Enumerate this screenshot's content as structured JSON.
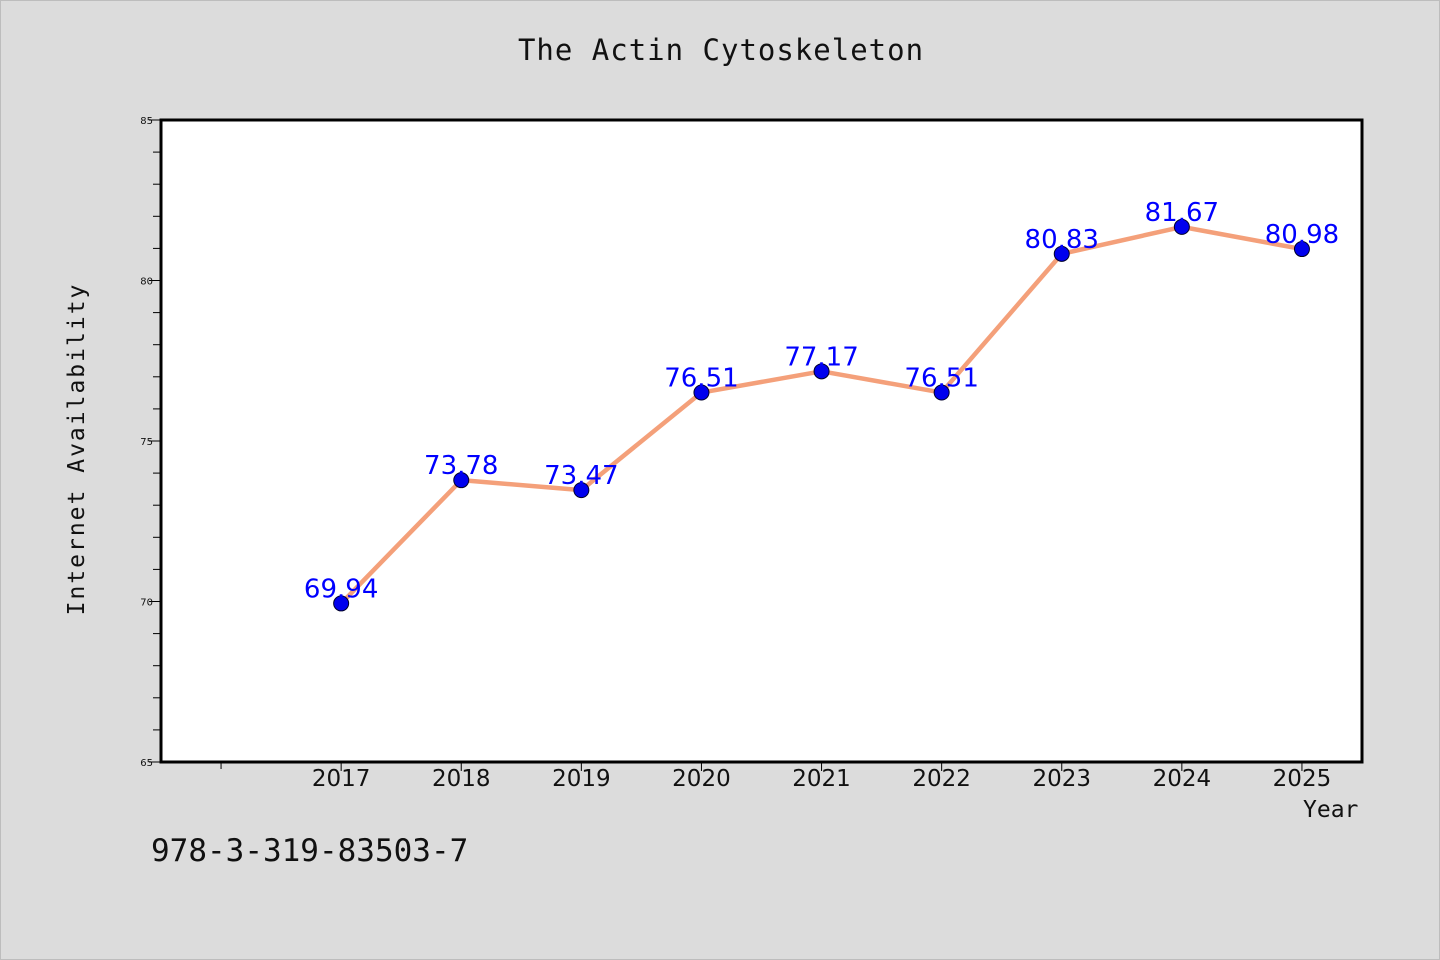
{
  "figure": {
    "background": "#dcdcdc",
    "footer_text": "978-3-319-83503-7"
  },
  "chart_data": {
    "type": "line",
    "title": "The Actin Cytoskeleton",
    "xlabel": "Year",
    "ylabel": "Internet Availability",
    "categories": [
      "2017",
      "2018",
      "2019",
      "2020",
      "2021",
      "2022",
      "2023",
      "2024",
      "2025"
    ],
    "series": [
      {
        "values": [
          69.94,
          73.78,
          73.47,
          76.51,
          77.17,
          76.51,
          80.83,
          81.67,
          80.98
        ],
        "line_color": "#f4a07a",
        "marker_color": "#0000ee",
        "label_color": "#0000ff"
      }
    ],
    "data_labels": [
      "69.94",
      "73.78",
      "73.47",
      "76.51",
      "77.17",
      "76.51",
      "80.83",
      "81.67",
      "80.98"
    ],
    "ylim": [
      65,
      85
    ],
    "y_ticks": [
      "65",
      "70",
      "75",
      "80",
      "85"
    ],
    "x_range": [
      2015.5,
      2025.5
    ],
    "y_minor_step": 1,
    "grid": false,
    "legend": "none",
    "plot_background": "#ffffff",
    "axes_color": "#000000"
  }
}
